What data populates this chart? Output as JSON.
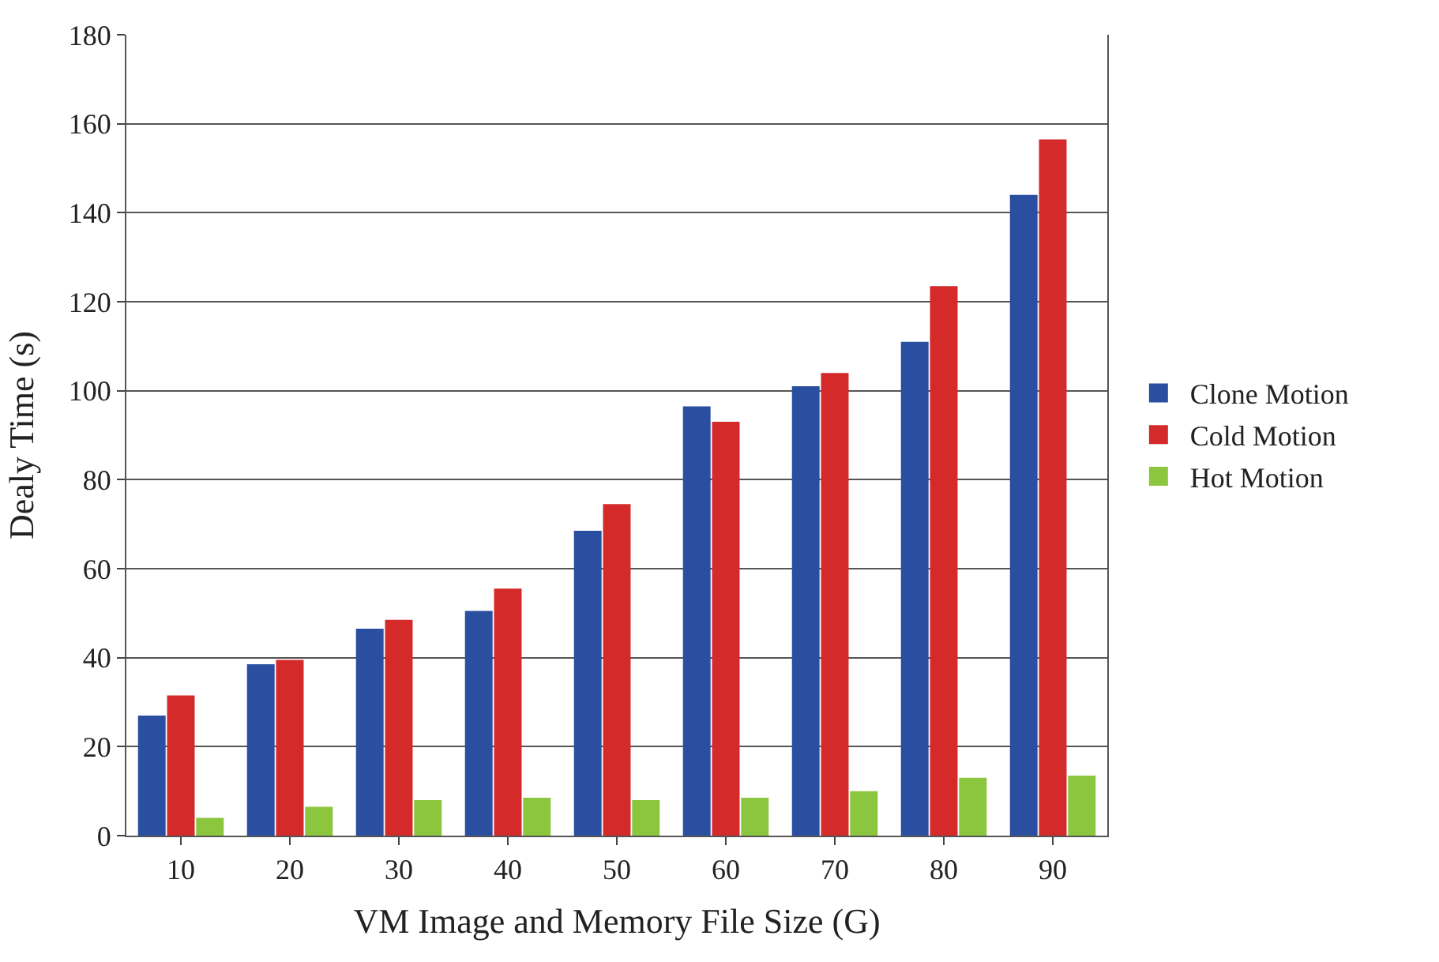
{
  "chart_data": {
    "type": "bar",
    "xlabel": "VM Image and Memory File Size (G)",
    "ylabel": "Dealy Time (s)",
    "categories": [
      "10",
      "20",
      "30",
      "40",
      "50",
      "60",
      "70",
      "80",
      "90"
    ],
    "series": [
      {
        "name": "Clone Motion",
        "color": "#2b4fa0",
        "values": [
          27,
          38.5,
          46.5,
          50.5,
          68.5,
          96.5,
          101,
          111,
          144
        ]
      },
      {
        "name": "Cold Motion",
        "color": "#d42a2a",
        "values": [
          31.5,
          39.5,
          48.5,
          55.5,
          74.5,
          93,
          104,
          123.5,
          156.5
        ]
      },
      {
        "name": "Hot Motion",
        "color": "#8cc63f",
        "values": [
          4,
          6.5,
          8,
          8.5,
          8,
          8.5,
          10,
          13,
          13.5
        ]
      }
    ],
    "ylim": [
      0,
      180
    ],
    "yticks": [
      0,
      20,
      40,
      60,
      80,
      100,
      120,
      140,
      160,
      180
    ],
    "grid": "y",
    "legend": "right"
  }
}
